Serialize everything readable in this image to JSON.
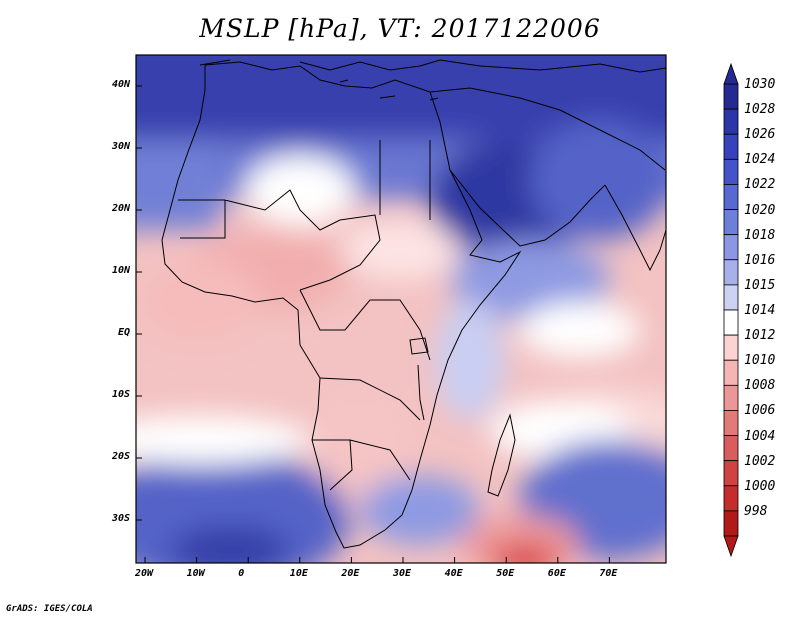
{
  "title": "MSLP [hPa], VT: 2017122006",
  "footer": "GrADS: IGES/COLA",
  "lat_ticks": [
    "40N",
    "30N",
    "20N",
    "10N",
    "EQ",
    "10S",
    "20S",
    "30S"
  ],
  "lon_ticks": [
    "20W",
    "10W",
    "0",
    "10E",
    "20E",
    "30E",
    "40E",
    "50E",
    "60E",
    "70E"
  ],
  "colorbar": {
    "levels": [
      "1030",
      "1028",
      "1026",
      "1024",
      "1022",
      "1020",
      "1018",
      "1016",
      "1015",
      "1014",
      "1012",
      "1010",
      "1008",
      "1006",
      "1004",
      "1002",
      "1000",
      "998"
    ],
    "colors": [
      "#242a92",
      "#2d35a8",
      "#3742bc",
      "#4653c8",
      "#5a69d2",
      "#6e7fd9",
      "#8b97e2",
      "#a8b0ea",
      "#cdd2f3",
      "#ffffff",
      "#fbd3d3",
      "#f5b5b5",
      "#ec9797",
      "#e27a7a",
      "#d95d5d",
      "#cf4343",
      "#c52d2d",
      "#b01a1a"
    ]
  },
  "map_colors": {
    "ocean_north": "#3d45b5",
    "sahara_high": "#f4c6c6",
    "tropical_low": "#f2b3b3",
    "arabia_high": "#3239a4",
    "south_ocean_high": "#6d7bd6",
    "southern_low": "#d93b3b"
  }
}
